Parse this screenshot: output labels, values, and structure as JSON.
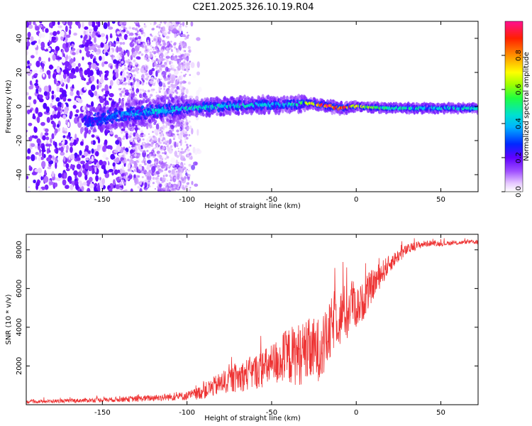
{
  "title": "C2E1.2025.326.10.19.R04",
  "chart_data": [
    {
      "id": "spectrogram",
      "type": "heatmap",
      "xlabel": "Height of straight line (km)",
      "ylabel": "Frequency (Hz)",
      "xlim": [
        -195,
        72
      ],
      "ylim": [
        -50,
        50
      ],
      "xticks": [
        -150,
        -100,
        -50,
        0,
        50
      ],
      "yticks": [
        -40,
        -20,
        0,
        20,
        40
      ],
      "colorbar": {
        "label": "Normalized spectral amplitude",
        "range": [
          0,
          1
        ],
        "ticks": [
          "0.0",
          "0.2",
          "0.4",
          "0.6",
          "0.8"
        ],
        "tick_values": [
          0,
          0.2,
          0.4,
          0.6,
          0.8
        ]
      },
      "ridge": [
        {
          "x": -155,
          "y": -8,
          "amp": 0.25
        },
        {
          "x": -140,
          "y": -5,
          "amp": 0.35
        },
        {
          "x": -120,
          "y": -3,
          "amp": 0.42
        },
        {
          "x": -100,
          "y": -1,
          "amp": 0.45
        },
        {
          "x": -80,
          "y": 0,
          "amp": 0.45
        },
        {
          "x": -60,
          "y": 1,
          "amp": 0.45
        },
        {
          "x": -40,
          "y": 1,
          "amp": 0.42
        },
        {
          "x": -30,
          "y": 2,
          "amp": 0.6
        },
        {
          "x": -20,
          "y": 1,
          "amp": 0.95
        },
        {
          "x": -10,
          "y": -1,
          "amp": 0.95
        },
        {
          "x": 0,
          "y": 0,
          "amp": 0.7
        },
        {
          "x": 20,
          "y": -1,
          "amp": 0.5
        },
        {
          "x": 50,
          "y": -1,
          "amp": 0.45
        },
        {
          "x": 72,
          "y": -1,
          "amp": 0.45
        }
      ]
    },
    {
      "id": "snr",
      "type": "line",
      "xlabel": "Height of straight line (km)",
      "ylabel": "SNR (10 * v/v)",
      "xlim": [
        -195,
        72
      ],
      "ylim": [
        0,
        8800
      ],
      "xticks": [
        -150,
        -100,
        -50,
        0,
        50
      ],
      "yticks": [
        2000,
        4000,
        6000,
        8000
      ],
      "series": [
        {
          "name": "SNR",
          "color": "#ee3333",
          "x": [
            -195,
            -170,
            -150,
            -130,
            -120,
            -110,
            -100,
            -95,
            -90,
            -85,
            -80,
            -75,
            -70,
            -65,
            -60,
            -55,
            -50,
            -45,
            -40,
            -35,
            -30,
            -25,
            -20,
            -15,
            -12,
            -10,
            -8,
            -5,
            -3,
            0,
            3,
            5,
            8,
            10,
            15,
            20,
            25,
            30,
            35,
            40,
            45,
            50,
            55,
            60,
            65,
            72
          ],
          "values": [
            150,
            200,
            250,
            300,
            350,
            400,
            450,
            550,
            700,
            900,
            1100,
            1250,
            1400,
            1550,
            1700,
            1850,
            2050,
            2300,
            2500,
            2600,
            2700,
            2800,
            2900,
            3800,
            4800,
            4200,
            5000,
            4500,
            5500,
            5000,
            5200,
            5500,
            6000,
            6200,
            6800,
            7300,
            7700,
            8000,
            8200,
            8300,
            8350,
            8300,
            8350,
            8350,
            8400,
            8400
          ],
          "noise": [
            80,
            100,
            120,
            150,
            170,
            200,
            230,
            300,
            400,
            500,
            600,
            650,
            750,
            850,
            900,
            1000,
            1100,
            1300,
            1500,
            1600,
            1700,
            1700,
            1600,
            1600,
            1500,
            1400,
            1400,
            1300,
            1200,
            1100,
            1000,
            1000,
            900,
            800,
            650,
            450,
            350,
            280,
            220,
            170,
            140,
            120,
            110,
            100,
            100,
            100
          ]
        }
      ]
    }
  ]
}
